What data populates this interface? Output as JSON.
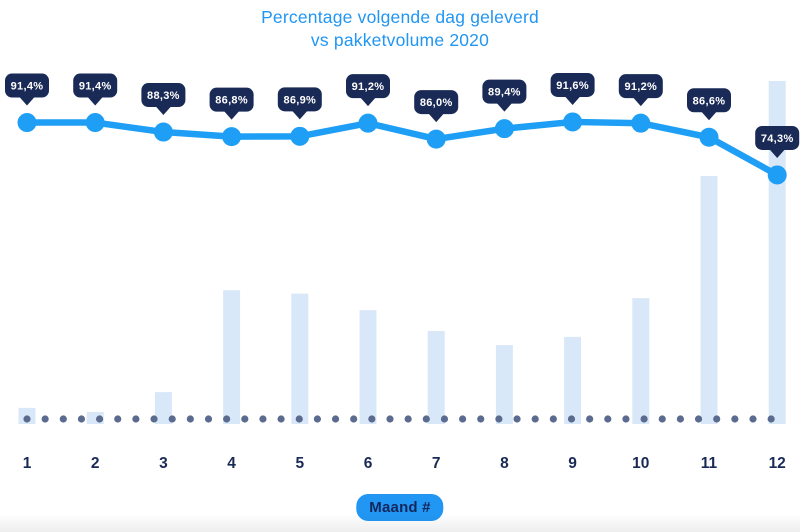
{
  "header": {
    "title_line1": "Percentage volgende dag geleverd",
    "title_line2": "vs pakketvolume 2020"
  },
  "x_axis": {
    "label": "Maand #"
  },
  "colors": {
    "accent_blue": "#2196f3",
    "line_blue": "#1e9ef5",
    "badge_navy": "#1a2a56",
    "badge_text": "#ffffff",
    "bar_fill": "#d9e8f9",
    "baseline_dot": "#5a6b8f",
    "axis_text_navy": "#1a2a56",
    "background": "#ffffff"
  },
  "chart_data": {
    "type": "line",
    "title": "Percentage volgende dag geleverd vs pakketvolume 2020",
    "xlabel": "Maand #",
    "ylabel": "",
    "categories": [
      1,
      2,
      3,
      4,
      5,
      6,
      7,
      8,
      9,
      10,
      11,
      12
    ],
    "legend": "none",
    "grid": "off",
    "baseline_style": "dotted",
    "series": [
      {
        "name": "Percentage volgende dag geleverd",
        "type": "line",
        "unit": "%",
        "values": [
          91.4,
          91.4,
          88.3,
          86.8,
          86.9,
          91.2,
          86.0,
          89.4,
          91.6,
          91.2,
          86.6,
          74.3
        ],
        "labels": [
          "91,4%",
          "91,4%",
          "88,3%",
          "86,8%",
          "86,9%",
          "91,2%",
          "86,0%",
          "89,4%",
          "91,6%",
          "91,2%",
          "86,6%",
          "74,3%"
        ]
      },
      {
        "name": "Pakketvolume 2020",
        "type": "bar",
        "values_relative_estimated": [
          4.7,
          3.5,
          9.3,
          39,
          38,
          33.2,
          27.1,
          23,
          25.4,
          36.7,
          72.3,
          100
        ]
      }
    ]
  }
}
